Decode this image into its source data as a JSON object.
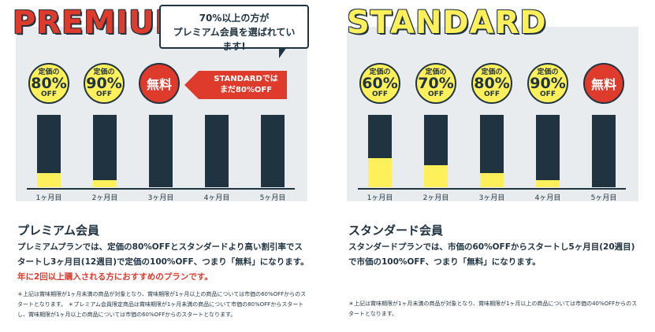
{
  "premium": {
    "brand": "PREMIUM",
    "callout": [
      "70%以上の方が",
      "プレミアム会員を選ばれています!"
    ],
    "arrow_text": [
      "STANDARDでは",
      "まだ80%OFF"
    ],
    "badges": [
      {
        "top": "定価の",
        "pct": "80%",
        "off": "OFF",
        "style": "yellow"
      },
      {
        "top": "定価の",
        "pct": "90%",
        "off": "OFF",
        "style": "yellow"
      },
      {
        "label": "無料",
        "style": "red"
      }
    ],
    "months": [
      "1ヶ月目",
      "2ヶ月目",
      "3ヶ月目",
      "4ヶ月目",
      "5ヶ月目"
    ],
    "fill_fraction": [
      0.2,
      0.1,
      0,
      0,
      0
    ],
    "heading": "プレミアム会員",
    "desc_main": "プレミアムプランでは、定価の80%OFFとスタンダードより高い割引率でスタートし3ヶ月目(12週目)で定価の100%OFF、つまり「無料」になります。",
    "desc_red": "年に2回以上購入される方におすすめのプランです。",
    "note": "＊上記は賞味期限が1ヶ月未満の商品が対象となり、賞味期限が1ヶ月以上の商品については市価の60%OFFからのスタートとなります。 ＊プレミアム会員限定商品は賞味期限が1ヶ月未満の商品について市価の80%OFFからスタートし、賞味期限が1ヶ月以上の商品については市価の60%OFFからのスタートとなります。"
  },
  "standard": {
    "brand": "STANDARD",
    "badges": [
      {
        "top": "定価の",
        "pct": "60%",
        "off": "OFF",
        "style": "yellow"
      },
      {
        "top": "定価の",
        "pct": "70%",
        "off": "OFF",
        "style": "yellow"
      },
      {
        "top": "定価の",
        "pct": "80%",
        "off": "OFF",
        "style": "yellow"
      },
      {
        "top": "定価の",
        "pct": "90%",
        "off": "OFF",
        "style": "yellow"
      },
      {
        "label": "無料",
        "style": "red"
      }
    ],
    "months": [
      "1ヶ月目",
      "2ヶ月目",
      "3ヶ月目",
      "4ヶ月目",
      "5ヶ月目"
    ],
    "fill_fraction": [
      0.4,
      0.3,
      0.2,
      0.1,
      0
    ],
    "heading": "スタンダード会員",
    "desc_main": "スタンダードプランでは、市価の60%OFFからスタートし5ヶ月目(20週目)で市価の100%OFF、つまり「無料」になります。",
    "note": "＊上記は賞味期限が1ヶ月未満の商品が対象となり、賞味期限が1ヶ月以上の商品については市価の40%OFFからのスタートとなります。"
  },
  "colors": {
    "navy": "#1f3340",
    "yellow": "#fdf05a",
    "red": "#df3b2d",
    "panel": "#e8ecee"
  }
}
